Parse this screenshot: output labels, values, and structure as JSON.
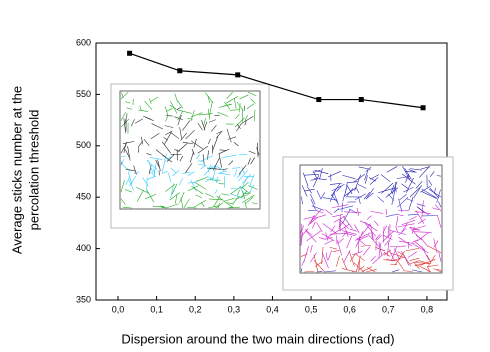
{
  "chart_data": {
    "type": "line",
    "x_label": "Dispersion around the two main directions (rad)",
    "y_label": [
      "Average sticks number at the",
      "percolation threshold"
    ],
    "x": [
      0.03,
      0.16,
      0.31,
      0.52,
      0.63,
      0.79
    ],
    "series": [
      {
        "color": "#000000",
        "values": [
          590,
          573,
          569,
          545,
          545,
          537
        ]
      }
    ],
    "xlim": [
      -0.057,
      0.852
    ],
    "ylim": [
      350,
      600
    ],
    "xticks": [
      {
        "value": 0,
        "label": "0,0"
      },
      {
        "value": 0.1,
        "label": "0,1"
      },
      {
        "value": 0.2,
        "label": "0,2"
      },
      {
        "value": 0.3,
        "label": "0,3"
      },
      {
        "value": 0.4,
        "label": "0,4"
      },
      {
        "value": 0.5,
        "label": "0,5"
      },
      {
        "value": 0.6,
        "label": "0,6"
      },
      {
        "value": 0.7,
        "label": "0,7"
      },
      {
        "value": 0.8,
        "label": "0,8"
      }
    ],
    "yticks": [
      350,
      400,
      450,
      500,
      550,
      600
    ]
  }
}
